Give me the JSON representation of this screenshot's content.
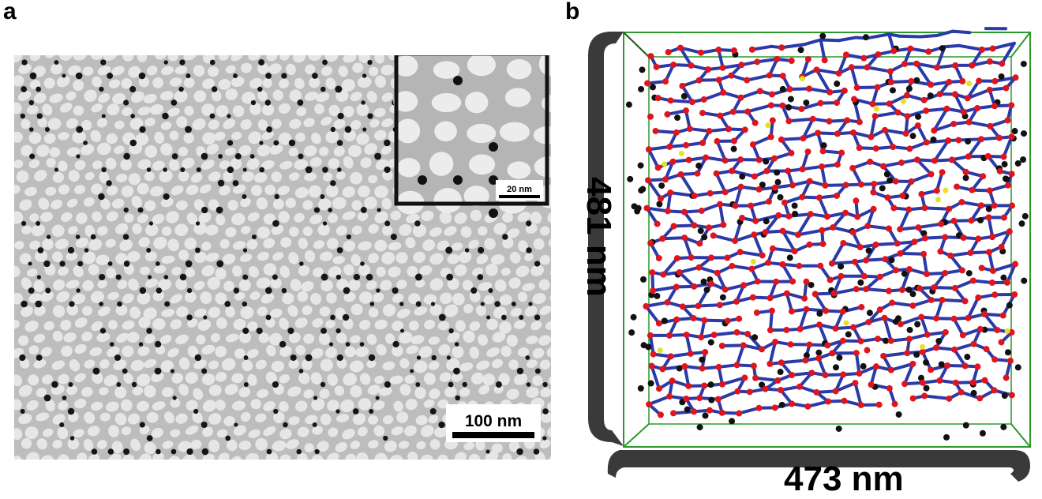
{
  "panel_a": {
    "label": "a",
    "scale_bar": "100 nm",
    "inset_scale_bar": "20 nm"
  },
  "panel_b": {
    "label": "b",
    "height_label": "481 nm",
    "width_label": "473 nm",
    "colors": {
      "edges": "#2a3aa8",
      "nodes": "#e0141c",
      "free_particles": "#111111",
      "junctions": "#e8e020",
      "box": "#2a9a2a",
      "arrows": "#3a3a3a"
    }
  }
}
